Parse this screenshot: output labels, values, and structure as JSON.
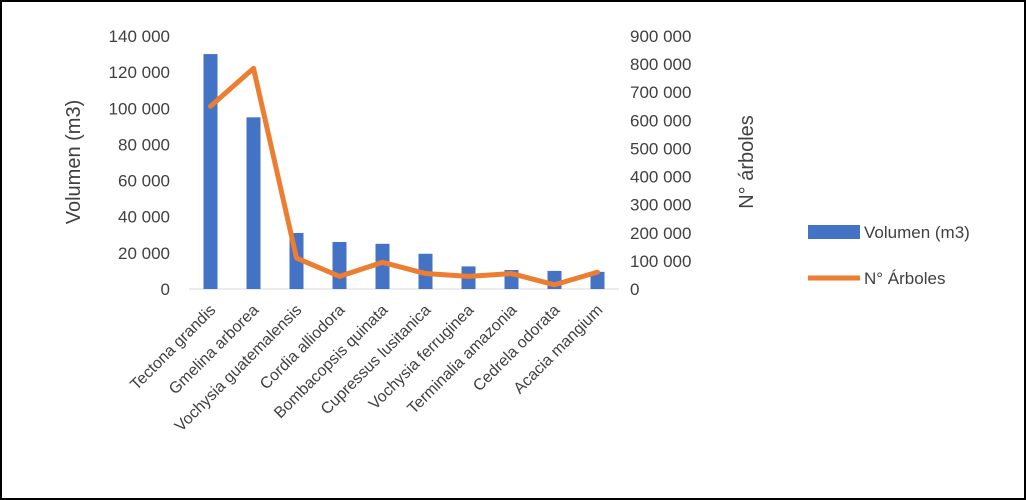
{
  "chart_data": {
    "type": "bar+line",
    "categories": [
      "Tectona grandis",
      "Gmelina arborea",
      "Vochysia guatemalensis",
      "Cordia alliodora",
      "Bombacopsis quinata",
      "Cupressus lusitanica",
      "Vochysia ferruginea",
      "Terminalia amazonia",
      "Cedrela odorata",
      "Acacia mangium"
    ],
    "series": [
      {
        "name": "Volumen (m3)",
        "type": "bar",
        "axis": "left",
        "color": "#4472C4",
        "values": [
          130000,
          95000,
          31000,
          26000,
          25000,
          19500,
          12500,
          10500,
          10000,
          9500
        ]
      },
      {
        "name": "N° Árboles",
        "type": "line",
        "axis": "right",
        "color": "#ED7D31",
        "values": [
          650000,
          785000,
          110000,
          45000,
          95000,
          55000,
          45000,
          55000,
          15000,
          60000
        ]
      }
    ],
    "ylabel": "Volumen (m3)",
    "y2label": "N° árboles",
    "ylim": [
      0,
      140000
    ],
    "y2lim": [
      0,
      900000
    ],
    "yticks": [
      0,
      20000,
      40000,
      60000,
      80000,
      100000,
      120000,
      140000
    ],
    "y2ticks": [
      0,
      100000,
      200000,
      300000,
      400000,
      500000,
      600000,
      700000,
      800000,
      900000
    ],
    "ytick_labels": [
      "0",
      "20 000",
      "40 000",
      "60 000",
      "80 000",
      "100 000",
      "120 000",
      "140 000"
    ],
    "y2tick_labels": [
      "0",
      "100 000",
      "200 000",
      "300 000",
      "400 000",
      "500 000",
      "600 000",
      "700 000",
      "800 000",
      "900 000"
    ],
    "grid": false,
    "legend": "right"
  }
}
